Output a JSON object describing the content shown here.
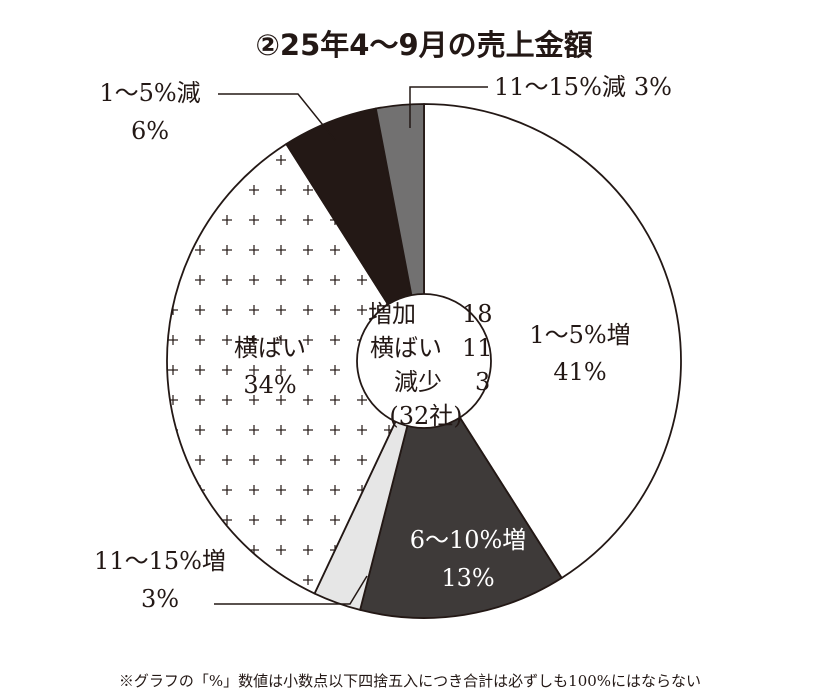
{
  "chart_data": {
    "type": "pie",
    "title": "②25年4〜9月の売上金額",
    "slices": [
      {
        "label": "1〜5%増",
        "value": 41,
        "value_label": "41%",
        "fill": "#ffffff",
        "pattern": "none",
        "text_color": "#231815"
      },
      {
        "label": "6〜10%増",
        "value": 13,
        "value_label": "13%",
        "fill": "#3e3a39",
        "pattern": "none",
        "text_color": "#ffffff"
      },
      {
        "label": "11〜15%増",
        "value": 3,
        "value_label": "3%",
        "fill": "#e6e6e6",
        "pattern": "none",
        "text_color": "#231815"
      },
      {
        "label": "横ばい",
        "value": 34,
        "value_label": "34%",
        "fill": "#ffffff",
        "pattern": "plus",
        "text_color": "#231815"
      },
      {
        "label": "1〜5%減",
        "value": 6,
        "value_label": "6%",
        "fill": "#231815",
        "pattern": "none",
        "text_color": "#231815"
      },
      {
        "label": "11〜15%減",
        "value": 3,
        "value_label": "3%",
        "fill": "#727171",
        "pattern": "none",
        "text_color": "#231815"
      }
    ],
    "center_summary": [
      {
        "label": "増加",
        "count": "18"
      },
      {
        "label": "横ばい",
        "count": "11"
      },
      {
        "label": "減少",
        "count": "3"
      }
    ],
    "center_total": "(32社)"
  },
  "footnote": "※グラフの「%」数値は小数点以下四捨五入につき合計は必ずしも100%にはならない",
  "colors": {
    "ink": "#231815",
    "background": "#ffffff"
  }
}
